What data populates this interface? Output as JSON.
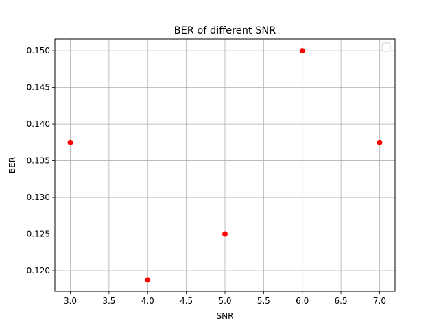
{
  "chart_data": {
    "type": "scatter",
    "title": "BER of different SNR",
    "xlabel": "SNR",
    "ylabel": "BER",
    "xlim": [
      2.8,
      7.2
    ],
    "ylim": [
      0.1172,
      0.1516
    ],
    "xticks": [
      "3.0",
      "3.5",
      "4.0",
      "4.5",
      "5.0",
      "5.5",
      "6.0",
      "6.5",
      "7.0"
    ],
    "yticks": [
      "0.120",
      "0.125",
      "0.130",
      "0.135",
      "0.140",
      "0.145",
      "0.150"
    ],
    "grid": true,
    "legend": "upper-right (empty box)",
    "series": [
      {
        "color": "#ff0000",
        "marker": "circle",
        "points": [
          {
            "x": 3.0,
            "y": 0.1375
          },
          {
            "x": 4.0,
            "y": 0.11875
          },
          {
            "x": 5.0,
            "y": 0.125
          },
          {
            "x": 6.0,
            "y": 0.15
          },
          {
            "x": 7.0,
            "y": 0.1375
          }
        ]
      }
    ]
  }
}
